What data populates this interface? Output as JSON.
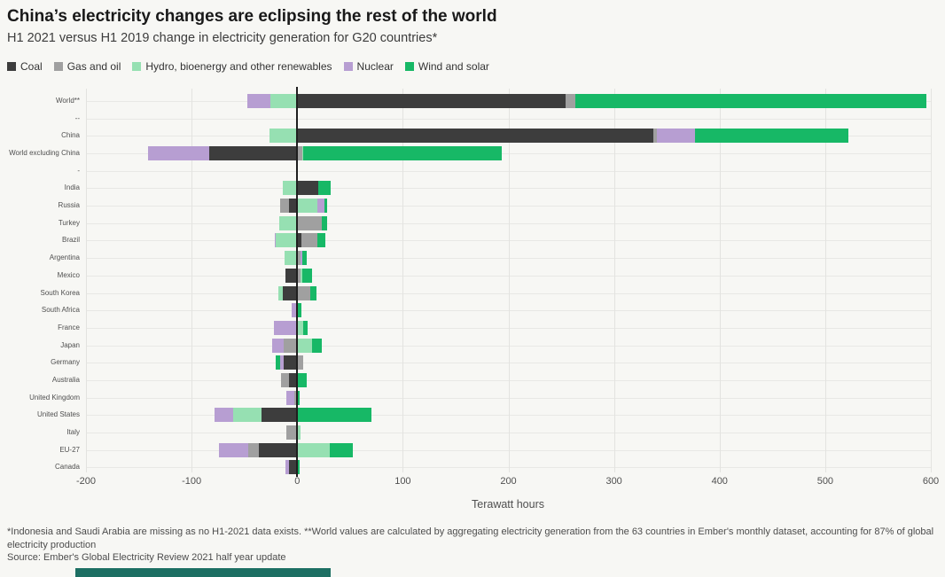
{
  "header": {
    "title": "China’s electricity changes are eclipsing the rest of the world",
    "subtitle": "H1 2021 versus H1 2019 change in electricity generation for G20 countries*"
  },
  "colors": {
    "coal": "#3d3d3d",
    "gas": "#a0a0a0",
    "hydro": "#96e0b2",
    "nuclear": "#b79ed2",
    "wind": "#17b866",
    "background": "#f7f7f4",
    "zero_line": "#1f1f1f",
    "grid": "#e3e3e0",
    "brand_strip": "#1d6f63"
  },
  "chart_data": {
    "type": "bar",
    "orientation": "horizontal-stacked",
    "title": "China’s electricity changes are eclipsing the rest of the world",
    "subtitle": "H1 2021 versus H1 2019 change in electricity generation for G20 countries*",
    "xlabel": "Terawatt hours",
    "xlim": [
      -200,
      600
    ],
    "xticks": [
      -200,
      -100,
      0,
      100,
      200,
      300,
      400,
      500,
      600
    ],
    "grid": true,
    "legend_position": "top",
    "categories": [
      "World**",
      "--",
      "China",
      "World excluding China",
      "-",
      "India",
      "Russia",
      "Turkey",
      "Brazil",
      "Argentina",
      "Mexico",
      "South Korea",
      "South Africa",
      "France",
      "Japan",
      "Germany",
      "Australia",
      "United Kingdom",
      "United States",
      "Italy",
      "EU-27",
      "Canada"
    ],
    "series": [
      {
        "name": "Coal",
        "color": "#3d3d3d",
        "values": [
          254,
          null,
          337,
          -83,
          null,
          20,
          -8,
          0,
          4,
          0,
          -11,
          -14,
          0,
          0,
          0,
          -13,
          -8,
          0,
          -34,
          0,
          -36,
          -8
        ]
      },
      {
        "name": "Gas and oil",
        "color": "#a0a0a0",
        "values": [
          9,
          null,
          4,
          5,
          null,
          0,
          -8,
          23,
          15,
          3,
          3,
          12,
          0,
          0,
          -13,
          6,
          -7,
          -3,
          0,
          -10,
          -10,
          0
        ]
      },
      {
        "name": "Hydro, bioenergy and other renewables",
        "color": "#96e0b2",
        "values": [
          -25,
          null,
          -26,
          1,
          null,
          -14,
          19,
          -17,
          -20,
          -12,
          2,
          -4,
          0,
          6,
          14,
          0,
          0,
          0,
          -27,
          3,
          31,
          0
        ]
      },
      {
        "name": "Nuclear",
        "color": "#b79ed2",
        "values": [
          -22,
          null,
          36,
          -58,
          null,
          0,
          7,
          0,
          -1,
          2,
          0,
          0,
          -5,
          -22,
          -11,
          -3,
          0,
          -7,
          -17,
          0,
          -28,
          -3
        ]
      },
      {
        "name": "Wind and solar",
        "color": "#17b866",
        "values": [
          333,
          null,
          145,
          188,
          null,
          12,
          2,
          5,
          8,
          4,
          9,
          6,
          4,
          4,
          9,
          -4,
          9,
          2,
          70,
          0,
          22,
          2
        ]
      }
    ]
  },
  "footnotes": {
    "text": "*Indonesia and Saudi Arabia are missing as no H1-2021 data exists. **World values are calculated by aggregating electricity generation from the 63 countries in Ember's monthly dataset, accounting for 87% of global electricity production",
    "source": "Source: Ember's Global Electricity Review 2021 half year update"
  }
}
